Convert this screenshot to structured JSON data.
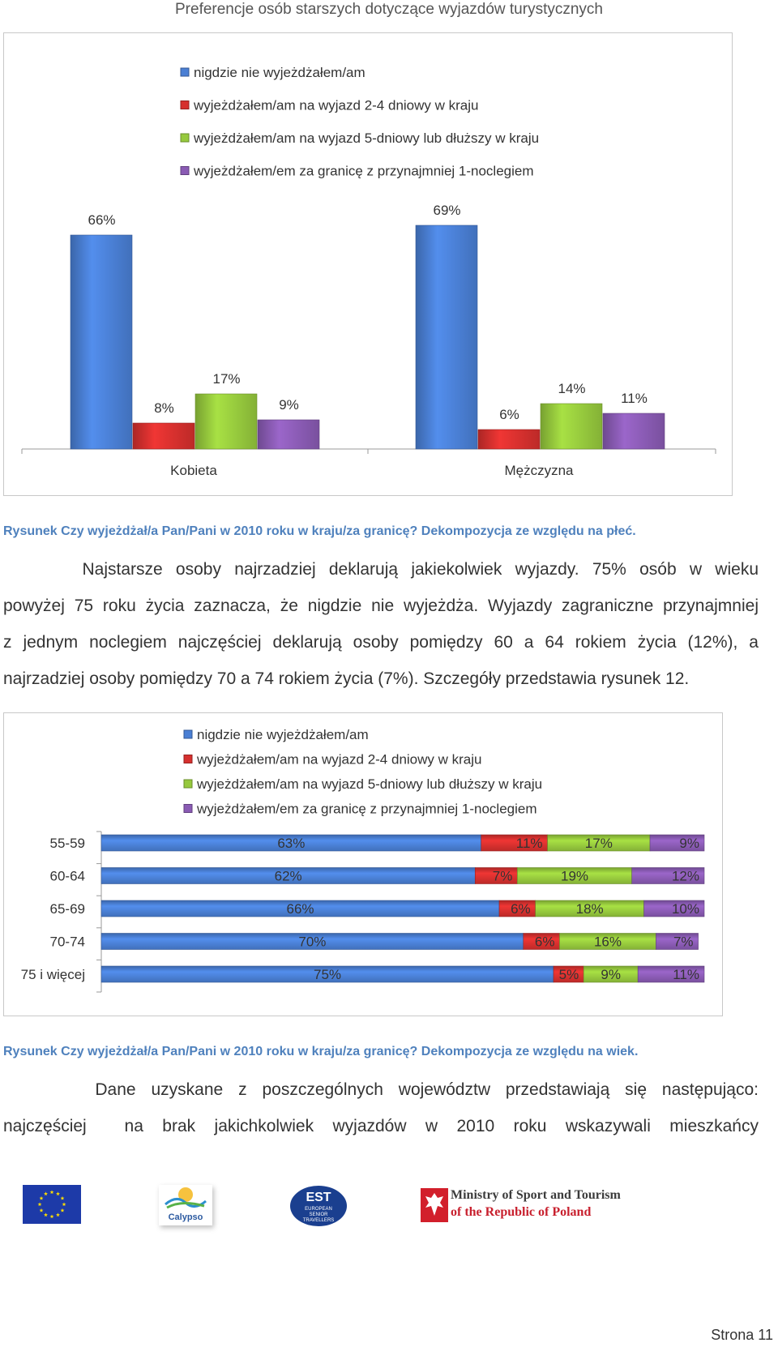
{
  "header": {
    "title": "Preferencje osób starszych dotyczące wyjazdów turystycznych"
  },
  "legend": {
    "items": [
      {
        "label": "nigdzie nie wyjeżdżałem/am",
        "color": "#4a7fd4"
      },
      {
        "label": "wyjeżdżałem/am na wyjazd 2-4 dniowy w kraju",
        "color": "#d6302e"
      },
      {
        "label": "wyjeżdżałem/am na wyjazd 5-dniowy lub dłuższy w kraju",
        "color": "#96c93d"
      },
      {
        "label": "wyjeżdżałem/em za granicę z przynajmniej 1-noclegiem",
        "color": "#8a5bb4"
      }
    ]
  },
  "chart_data": [
    {
      "type": "bar",
      "categories": [
        "Kobieta",
        "Mężczyzna"
      ],
      "series": [
        {
          "name": "nigdzie nie wyjeżdżałem/am",
          "values": [
            66,
            69
          ],
          "labels": [
            "66%",
            "69%"
          ]
        },
        {
          "name": "wyjeżdżałem/am na wyjazd 2-4 dniowy w kraju",
          "values": [
            8,
            6
          ],
          "labels": [
            "8%",
            "6%"
          ]
        },
        {
          "name": "wyjeżdżałem/am na wyjazd 5-dniowy lub dłuższy w kraju",
          "values": [
            17,
            14
          ],
          "labels": [
            "17%",
            "14%"
          ]
        },
        {
          "name": "wyjeżdżałem/em za granicę z przynajmniej 1-noclegiem",
          "values": [
            9,
            11
          ],
          "labels": [
            "9%",
            "11%"
          ]
        }
      ],
      "ylim": [
        0,
        69
      ],
      "grid": false,
      "legend_position": "top"
    },
    {
      "type": "bar",
      "orientation": "horizontal",
      "stacked": true,
      "categories": [
        "55-59",
        "60-64",
        "65-69",
        "70-74",
        "75 i więcej"
      ],
      "series": [
        {
          "name": "nigdzie nie wyjeżdżałem/am",
          "values": [
            63,
            62,
            66,
            70,
            75
          ],
          "labels": [
            "63%",
            "62%",
            "66%",
            "70%",
            "75%"
          ]
        },
        {
          "name": "wyjeżdżałem/am na wyjazd 2-4 dniowy w kraju",
          "values": [
            11,
            7,
            6,
            6,
            5
          ],
          "labels": [
            "11%",
            "7%",
            "6%",
            "6%",
            "5%"
          ]
        },
        {
          "name": "wyjeżdżałem/am na wyjazd 5-dniowy lub dłuższy w kraju",
          "values": [
            17,
            19,
            18,
            16,
            9
          ],
          "labels": [
            "17%",
            "19%",
            "18%",
            "16%",
            "9%"
          ]
        },
        {
          "name": "wyjeżdżałem/em za granicę z przynajmniej 1-noclegiem",
          "values": [
            9,
            12,
            10,
            7,
            11
          ],
          "labels": [
            "9%",
            "12%",
            "10%",
            "7%",
            "11%"
          ]
        }
      ],
      "xlim": [
        0,
        100
      ],
      "grid": false,
      "legend_position": "top"
    }
  ],
  "captions": {
    "figure1": "Rysunek  Czy wyjeżdżał/a Pan/Pani w 2010 roku w kraju/za granicę? Dekompozycja ze względu na płeć.",
    "figure2": "Rysunek  Czy wyjeżdżał/a Pan/Pani w 2010 roku w kraju/za granicę? Dekompozycja ze względu na wiek."
  },
  "paragraph1": {
    "lines": [
      "      Najstarsze osoby najrzadziej deklarują jakiekolwiek wyjazdy. 75% osób w wieku",
      "powyżej 75 roku życia zaznacza, że nigdzie nie wyjeżdża. Wyjazdy zagraniczne przynajmniej",
      "z jednym noclegiem najczęściej deklarują osoby pomiędzy 60 a 64 rokiem życia (12%), a",
      "najrzadziej osoby pomiędzy 70 a 74 rokiem życia (7%). Szczegóły przedstawia rysunek 12."
    ]
  },
  "paragraph2": {
    "lines": [
      "      Dane uzyskane z poszczególnych województw przedstawiają się następująco:",
      "najczęściej  na brak jakichkolwiek wyjazdów w 2010 roku wskazywali mieszkańcy"
    ]
  },
  "footer": {
    "logos": {
      "eu": "eu-flag",
      "calypso": {
        "text": "Calypso"
      },
      "est": {
        "title": "EST",
        "subtitle": "EUROPEAN SENIOR TRAVELLERS"
      },
      "ministry": {
        "line1": "Ministry of Sport and Tourism",
        "line2": "of the Republic of Poland"
      }
    },
    "page_number": "Strona 11"
  }
}
